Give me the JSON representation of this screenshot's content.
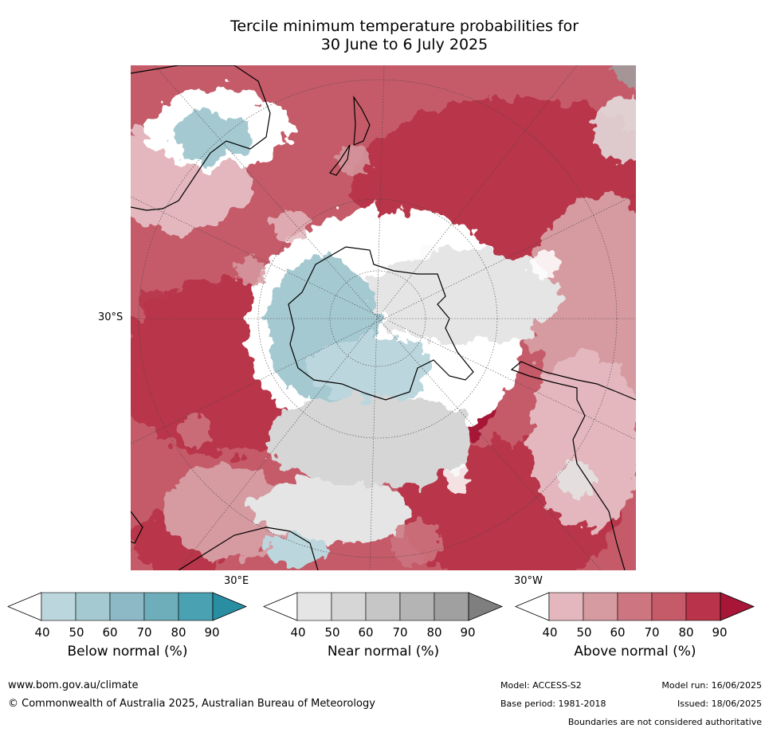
{
  "title": {
    "line1": "Tercile minimum temperature probabilities for",
    "line2": "30 June to 6 July 2025"
  },
  "map": {
    "projection": "south-polar-stereographic",
    "lat_label": "30°S",
    "lon_label_east": "30°E",
    "lon_label_west": "30°W"
  },
  "legends": [
    {
      "label": "Below normal (%)",
      "ticks": [
        "40",
        "50",
        "60",
        "70",
        "80",
        "90"
      ],
      "colors": [
        "#ffffff",
        "#bcd6dd",
        "#a5c9d1",
        "#8db8c5",
        "#6eaeba",
        "#4aa1b1",
        "#2a8ea3"
      ]
    },
    {
      "label": "Near normal (%)",
      "ticks": [
        "40",
        "50",
        "60",
        "70",
        "80",
        "90"
      ],
      "colors": [
        "#ffffff",
        "#e5e5e5",
        "#d6d6d6",
        "#c6c6c6",
        "#b4b4b4",
        "#a0a0a0",
        "#7f7f7f"
      ]
    },
    {
      "label": "Above normal (%)",
      "ticks": [
        "40",
        "50",
        "60",
        "70",
        "80",
        "90"
      ],
      "colors": [
        "#ffffff",
        "#e3b7bd",
        "#d69aa1",
        "#cd7681",
        "#c55b69",
        "#b9344a",
        "#a71636"
      ]
    }
  ],
  "footer": {
    "website": "www.bom.gov.au/climate",
    "copyright": "© Commonwealth of Australia 2025, Australian Bureau of Meteorology",
    "model": "Model: ACCESS-S2",
    "base_period": "Base period: 1981-2018",
    "model_run": "Model run: 16/06/2025",
    "issued": "Issued: 18/06/2025",
    "disclaimer": "Boundaries are not considered authoritative"
  }
}
